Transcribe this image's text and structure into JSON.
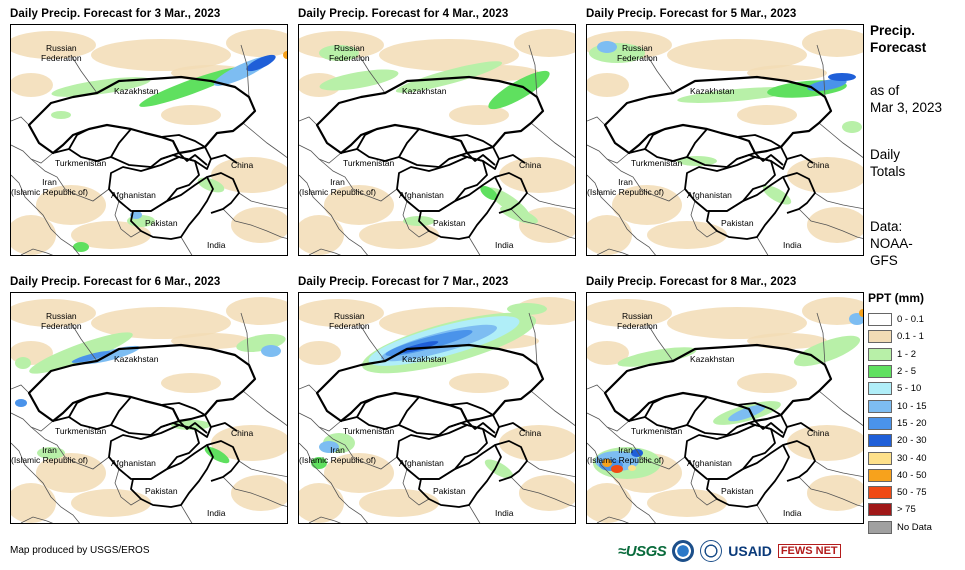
{
  "panels": [
    {
      "title": "Daily Precip. Forecast for 3 Mar., 2023"
    },
    {
      "title": "Daily Precip. Forecast for 4 Mar., 2023"
    },
    {
      "title": "Daily Precip. Forecast for 5 Mar., 2023"
    },
    {
      "title": "Daily Precip. Forecast for 6 Mar., 2023"
    },
    {
      "title": "Daily Precip. Forecast for 7 Mar., 2023"
    },
    {
      "title": "Daily Precip. Forecast for 8 Mar., 2023"
    }
  ],
  "labels": {
    "russia_1": "Russian",
    "russia_2": "Federation",
    "kazakhstan": "Kazakhstan",
    "turkmenistan": "Turkmenistan",
    "china": "China",
    "iran_1": "Iran",
    "iran_2": "(Islamic Republic of)",
    "afghanistan": "Afghanistan",
    "pakistan": "Pakistan",
    "india": "India"
  },
  "side": {
    "title_1": "Precip.",
    "title_2": "Forecast",
    "asof_1": "as of",
    "asof_2": "Mar 3, 2023",
    "totals_1": "Daily",
    "totals_2": "Totals",
    "data_1": "Data:",
    "data_2": "NOAA-",
    "data_3": "GFS"
  },
  "legend": {
    "title": "PPT (mm)",
    "items": [
      {
        "label": "0 - 0.1",
        "color": "#ffffff"
      },
      {
        "label": "0.1 - 1",
        "color": "#f2dcb5"
      },
      {
        "label": "1 - 2",
        "color": "#b8f0a8"
      },
      {
        "label": "2 - 5",
        "color": "#5fe05f"
      },
      {
        "label": "5 - 10",
        "color": "#b0eef8"
      },
      {
        "label": "10 - 15",
        "color": "#7dbdf2"
      },
      {
        "label": "15 - 20",
        "color": "#4a93ea"
      },
      {
        "label": "20 - 30",
        "color": "#1f5fd8"
      },
      {
        "label": "30 - 40",
        "color": "#fde08a"
      },
      {
        "label": "40 - 50",
        "color": "#f7a21c"
      },
      {
        "label": "50 - 75",
        "color": "#f04a14"
      },
      {
        "label": "> 75",
        "color": "#a01818"
      },
      {
        "label": "No Data",
        "color": "#a0a0a0"
      }
    ]
  },
  "credit": "Map produced by USGS/EROS",
  "logos": {
    "usgs": "≈USGS",
    "usaid": "USAID",
    "fews": "FEWS NET"
  }
}
